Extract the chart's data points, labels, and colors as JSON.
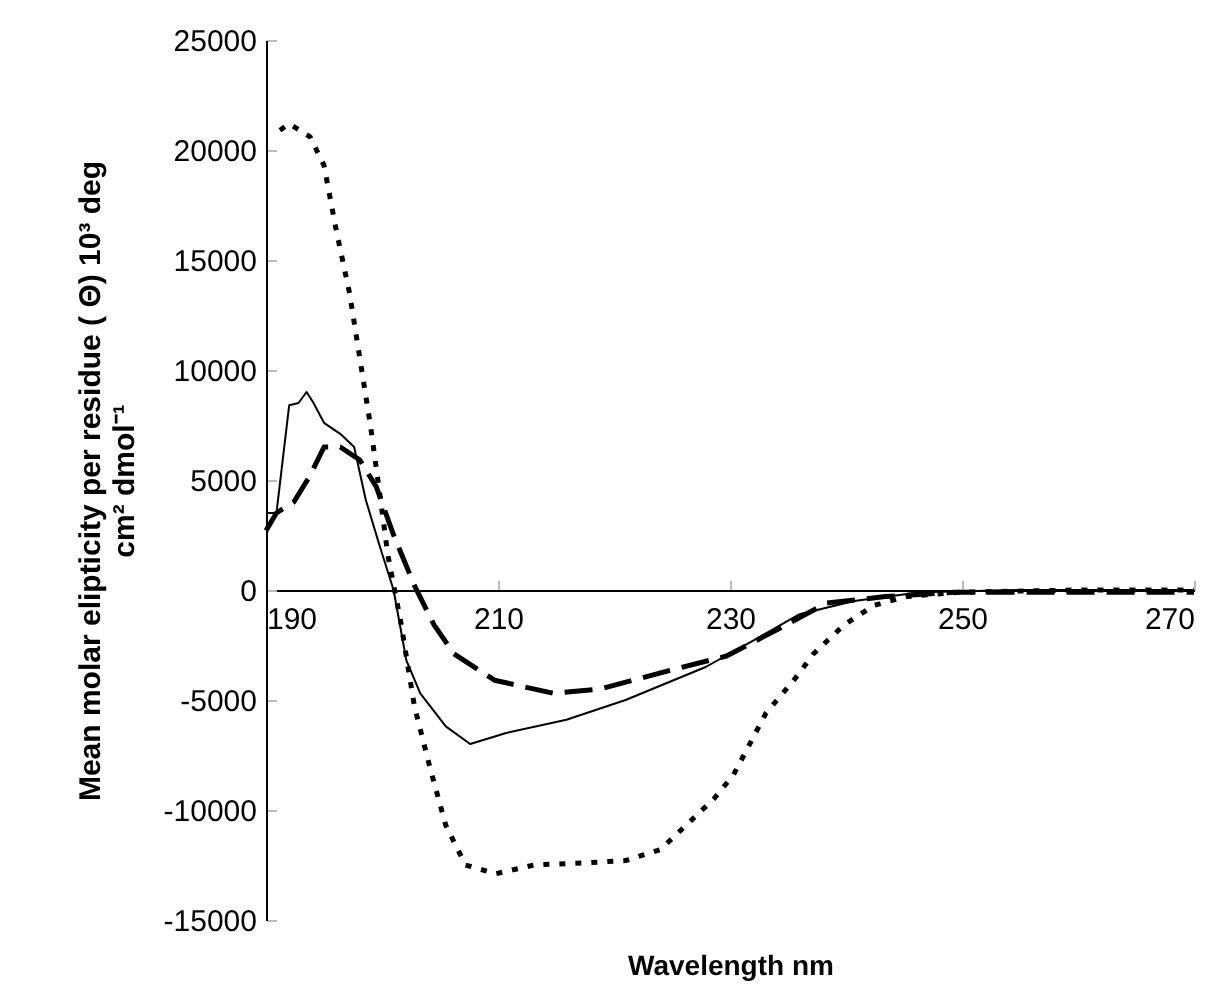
{
  "chart_data": {
    "type": "line",
    "xlabel": "Wavelength nm",
    "ylabel": "Mean molar elipticity per residue ( Θ) 10³ deg\ncm² dmol⁻¹",
    "xlim": [
      190,
      270
    ],
    "xticks": [
      190,
      210,
      230,
      250,
      270
    ],
    "ylim": [
      -15000,
      25000
    ],
    "yticks": [
      -15000,
      -10000,
      -5000,
      0,
      5000,
      10000,
      15000,
      20000,
      25000
    ],
    "grid": false,
    "marker": "none",
    "series": [
      {
        "color": "#000000",
        "line_style": "solid",
        "x": [
          190,
          190.9,
          192,
          192.8,
          193.5,
          194.1,
          195,
          196.4,
          197.6,
          198.6,
          199.8,
          201,
          202.1,
          203.3,
          205.5,
          207.6,
          210.7,
          215.9,
          221,
          227.9,
          232,
          236,
          240.7,
          246.4,
          255,
          270
        ],
        "values": [
          3500,
          3500,
          8400,
          8500,
          9000,
          8500,
          7600,
          7100,
          6500,
          4100,
          2000,
          0,
          -3200,
          -4700,
          -6200,
          -7000,
          -6500,
          -5900,
          -5000,
          -3500,
          -2300,
          -1100,
          -500,
          -100,
          0,
          0
        ]
      },
      {
        "color": "#000000",
        "line_style": "dashed",
        "x": [
          190,
          190.9,
          192.4,
          193.8,
          195,
          196.4,
          198.1,
          199.5,
          201,
          202.8,
          204.5,
          206.2,
          209.7,
          214.8,
          218.8,
          224.5,
          229.7,
          234.8,
          238.3,
          243.4,
          249.3,
          260,
          270
        ],
        "values": [
          2700,
          3500,
          4000,
          5200,
          6500,
          6500,
          5900,
          4700,
          2500,
          200,
          -1600,
          -2900,
          -4100,
          -4700,
          -4500,
          -3700,
          -3000,
          -1600,
          -600,
          -300,
          -100,
          -100,
          -100
        ]
      },
      {
        "color": "#000000",
        "line_style": "dotted",
        "x": [
          191.2,
          192,
          193.8,
          195,
          196,
          197.2,
          198.1,
          199,
          199.8,
          200.5,
          201.6,
          202.8,
          204.1,
          205.5,
          207.2,
          209.8,
          213.1,
          217.6,
          221,
          224,
          226.2,
          228.6,
          230.3,
          233.1,
          235.5,
          237.2,
          239.8,
          242.4,
          245.2,
          249.8,
          260,
          270
        ],
        "values": [
          20900,
          21200,
          20600,
          19300,
          16500,
          13500,
          10500,
          7500,
          4400,
          1600,
          -1400,
          -5300,
          -8000,
          -10700,
          -12500,
          -12900,
          -12500,
          -12400,
          -12300,
          -11800,
          -10700,
          -9500,
          -8400,
          -5600,
          -4100,
          -2900,
          -1600,
          -700,
          -300,
          -100,
          0,
          0
        ]
      }
    ]
  }
}
